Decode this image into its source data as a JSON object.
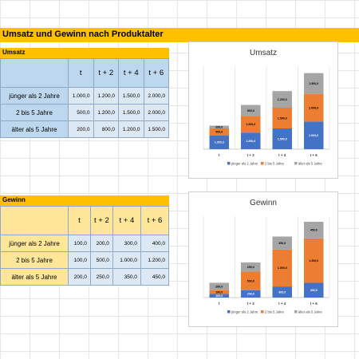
{
  "page_title": "Umsatz und Gewinn nach Produktalter",
  "umsatz_table": {
    "label": "Umsatz",
    "headers": [
      "t",
      "t + 2",
      "t + 4",
      "t + 6"
    ],
    "rows": [
      {
        "label": "jünger als 2 Jahre",
        "values": [
          "1.000,0",
          "1.200,0",
          "1.500,0",
          "2.000,0"
        ]
      },
      {
        "label": "2 bis 5 Jahre",
        "values": [
          "500,0",
          "1.200,0",
          "1.500,0",
          "2.000,0"
        ]
      },
      {
        "label": "älter als 5 Jahre",
        "values": [
          "200,0",
          "800,0",
          "1.200,0",
          "1.500,0"
        ]
      }
    ]
  },
  "gewinn_table": {
    "label": "Gewinn",
    "headers": [
      "t",
      "t + 2",
      "t + 4",
      "t + 6"
    ],
    "rows": [
      {
        "label": "jünger als 2 Jahre",
        "values": [
          "100,0",
          "200,0",
          "300,0",
          "400,0"
        ]
      },
      {
        "label": "2 bis 5 Jahre",
        "values": [
          "100,0",
          "500,0",
          "1.000,0",
          "1.200,0"
        ]
      },
      {
        "label": "älter als 5 Jahre",
        "values": [
          "200,0",
          "250,0",
          "350,0",
          "450,0"
        ]
      }
    ]
  },
  "colors": {
    "series": [
      "#4472c4",
      "#ed7d31",
      "#a5a5a5"
    ],
    "accent": "#ffc000",
    "umsatz_header_fill": "#bdd7ee",
    "umsatz_label_fill": "#bdd7ee",
    "gewinn_header_fill": "#ffe699",
    "gewinn_label_fill": "#ffe699",
    "value_fill": "#dde8f5"
  },
  "chart_data": [
    {
      "type": "bar",
      "stacked": true,
      "title": "Umsatz",
      "categories": [
        "t",
        "t + 2",
        "t + 4",
        "t + 6"
      ],
      "series": [
        {
          "name": "jünger als 2 Jahre",
          "values": [
            1000,
            1200,
            1500,
            2000
          ],
          "labels": [
            "1.000,0",
            "1.200,0",
            "1.500,0",
            "2.000,0"
          ]
        },
        {
          "name": "2 bis 5 Jahre",
          "values": [
            500,
            1200,
            1500,
            2000
          ],
          "labels": [
            "500,0",
            "1.200,0",
            "1.500,0",
            "2.000,0"
          ]
        },
        {
          "name": "älter als 5 Jahre",
          "values": [
            200,
            800,
            1200,
            1500
          ],
          "labels": [
            "200,0",
            "800,0",
            "1.200,0",
            "1.500,0"
          ]
        }
      ],
      "ylim": [
        0,
        6000
      ],
      "grid": true,
      "legend": "bottom"
    },
    {
      "type": "bar",
      "stacked": true,
      "title": "Gewinn",
      "categories": [
        "t",
        "t + 2",
        "t + 4",
        "t + 6"
      ],
      "series": [
        {
          "name": "jünger als 2 Jahre",
          "values": [
            100,
            200,
            300,
            400
          ],
          "labels": [
            "100,0",
            "200,0",
            "300,0",
            "400,0"
          ]
        },
        {
          "name": "2 bis 5 Jahre",
          "values": [
            100,
            500,
            1000,
            1200
          ],
          "labels": [
            "100,0",
            "500,0",
            "1.000,0",
            "1.200,0"
          ]
        },
        {
          "name": "älter als 5 Jahre",
          "values": [
            200,
            250,
            350,
            450
          ],
          "labels": [
            "200,0",
            "250,0",
            "350,0",
            "450,0"
          ]
        }
      ],
      "ylim": [
        0,
        2200
      ],
      "grid": true,
      "legend": "bottom"
    }
  ]
}
